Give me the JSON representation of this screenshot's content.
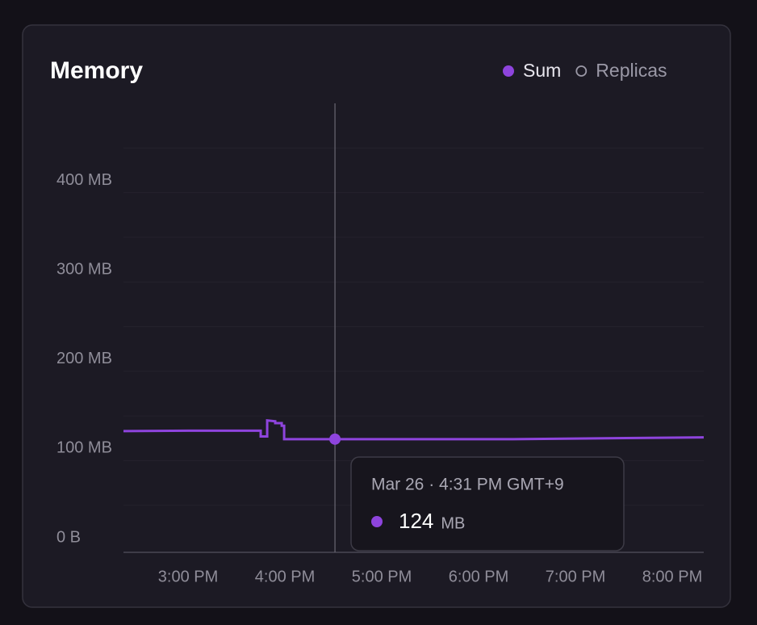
{
  "chart_data": {
    "type": "line",
    "title": "Memory",
    "series": [
      {
        "name": "Sum",
        "color": "#8e44dd",
        "visible": true,
        "x": [
          14.333,
          15.0,
          15.75,
          15.75,
          15.817,
          15.817,
          15.9,
          15.9,
          15.967,
          15.967,
          15.992,
          15.992,
          16.517,
          18.358,
          20.325
        ],
        "values": [
          133,
          133.5,
          133.5,
          127,
          127,
          145,
          144,
          142,
          142,
          139,
          139,
          124,
          124,
          124,
          126
        ]
      },
      {
        "name": "Replicas",
        "color": "#9a98a6",
        "visible": false
      }
    ],
    "xlim": [
      14.333,
      20.325
    ],
    "xticks": [
      {
        "value": 15,
        "label": "3:00 PM"
      },
      {
        "value": 16,
        "label": "4:00 PM"
      },
      {
        "value": 17,
        "label": "5:00 PM"
      },
      {
        "value": 18,
        "label": "6:00 PM"
      },
      {
        "value": 19,
        "label": "7:00 PM"
      },
      {
        "value": 20,
        "label": "8:00 PM"
      }
    ],
    "ylim": [
      0,
      500
    ],
    "yticks": [
      {
        "value": 0,
        "label": "0 B"
      },
      {
        "value": 100,
        "label": "100 MB"
      },
      {
        "value": 200,
        "label": "200 MB"
      },
      {
        "value": 300,
        "label": "300 MB"
      },
      {
        "value": 400,
        "label": "400 MB"
      }
    ],
    "minor_yticks": [
      50,
      150,
      250,
      350,
      450
    ],
    "grid": true,
    "tooltip": {
      "title": "Mar 26 · 4:31 PM GMT+9",
      "x": 16.517,
      "value": 124,
      "unit": "MB"
    }
  }
}
